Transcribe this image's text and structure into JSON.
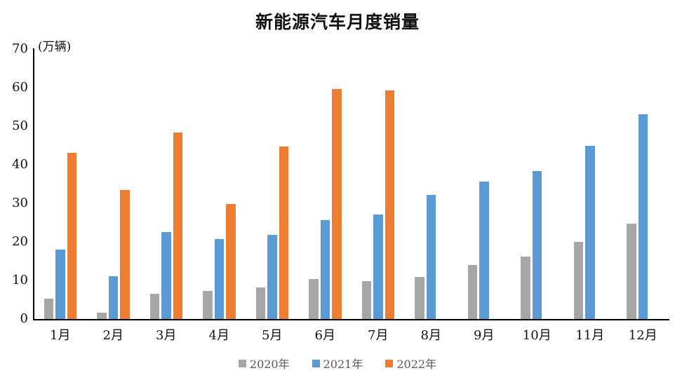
{
  "chart_data": {
    "type": "bar",
    "title": "新能源汽车月度销量",
    "unit_label": "(万辆)",
    "xlabel": "",
    "ylabel": "万辆",
    "ylim": [
      0,
      70
    ],
    "ytick_step": 10,
    "yticks": [
      0,
      10,
      20,
      30,
      40,
      50,
      60,
      70
    ],
    "grid": false,
    "legend_position": "bottom-center",
    "categories": [
      "1月",
      "2月",
      "3月",
      "4月",
      "5月",
      "6月",
      "7月",
      "8月",
      "9月",
      "10月",
      "11月",
      "12月"
    ],
    "series": [
      {
        "name": "2020年",
        "color": "#A6A6A6",
        "values": [
          5.2,
          1.6,
          6.5,
          7.2,
          8.2,
          10.4,
          9.8,
          10.9,
          14.0,
          16.1,
          20.0,
          24.8
        ]
      },
      {
        "name": "2021年",
        "color": "#5B9BD5",
        "values": [
          18.0,
          11.1,
          22.6,
          20.7,
          21.8,
          25.6,
          27.1,
          32.1,
          35.7,
          38.4,
          45.0,
          53.1
        ]
      },
      {
        "name": "2022年",
        "color": "#ED7D31",
        "values": [
          43.1,
          33.4,
          48.4,
          29.9,
          44.7,
          59.6,
          59.3,
          null,
          null,
          null,
          null,
          null
        ]
      }
    ]
  }
}
